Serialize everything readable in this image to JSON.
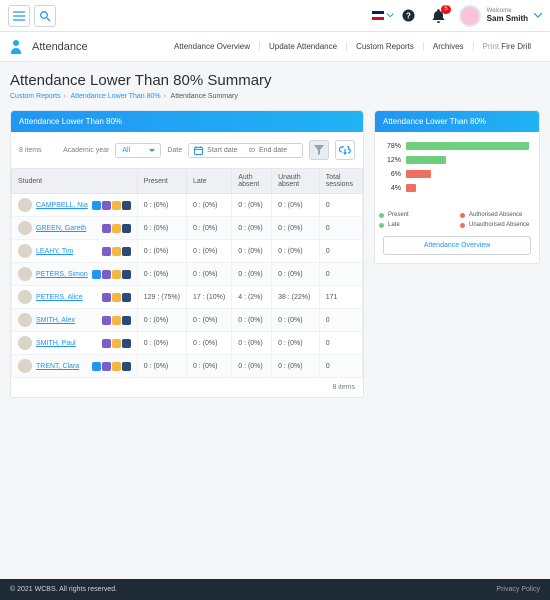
{
  "header": {
    "welcome_label": "Welcome",
    "username": "Sam Smith",
    "notif_count": "5"
  },
  "nav": {
    "section_title": "Attendance",
    "links": [
      {
        "label": "Attendance Overview"
      },
      {
        "label": "Update Attendance"
      },
      {
        "label": "Custom Reports"
      },
      {
        "label": "Archives"
      },
      {
        "label_prefix": "Print ",
        "label": "Fire Drill"
      }
    ]
  },
  "page": {
    "title": "Attendance Lower Than 80% Summary",
    "crumbs": [
      "Custom Reports",
      "Attendance Lower Than 80%",
      "Attendance Summary"
    ]
  },
  "left": {
    "heading": "Attendance Lower Than 80%",
    "item_count_top": "8 items",
    "item_count_bottom": "8 items",
    "academic_year_label": "Academic year",
    "academic_year_value": "All",
    "date_label": "Date",
    "start_placeholder": "Start date",
    "to_label": "to",
    "end_placeholder": "End date",
    "columns": [
      "Student",
      "Present",
      "Late",
      "Auth absent",
      "Unauth absent",
      "Total sessions"
    ],
    "rows": [
      {
        "name": "CAMPBELL, Nia",
        "chips": [
          "c-blue",
          "c-purple",
          "c-yellow",
          "c-navy"
        ],
        "present": "0 : (0%)",
        "late": "0 : (0%)",
        "auth": "0 : (0%)",
        "unauth": "0 : (0%)",
        "total": "0"
      },
      {
        "name": "GREEN, Gareth",
        "chips": [
          "c-purple",
          "c-yellow",
          "c-navy"
        ],
        "present": "0 : (0%)",
        "late": "0 : (0%)",
        "auth": "0 : (0%)",
        "unauth": "0 : (0%)",
        "total": "0"
      },
      {
        "name": "LEAHY, Tim",
        "chips": [
          "c-purple",
          "c-yellow",
          "c-navy"
        ],
        "present": "0 : (0%)",
        "late": "0 : (0%)",
        "auth": "0 : (0%)",
        "unauth": "0 : (0%)",
        "total": "0"
      },
      {
        "name": "PETERS, Simon",
        "chips": [
          "c-blue",
          "c-purple",
          "c-yellow",
          "c-navy"
        ],
        "present": "0 : (0%)",
        "late": "0 : (0%)",
        "auth": "0 : (0%)",
        "unauth": "0 : (0%)",
        "total": "0"
      },
      {
        "name": "PETERS, Alice",
        "chips": [
          "c-purple",
          "c-yellow",
          "c-navy"
        ],
        "present": "129 : (75%)",
        "late": "17 : (10%)",
        "auth": "4 : (2%)",
        "unauth": "38 : (22%)",
        "total": "171"
      },
      {
        "name": "SMITH, Alex",
        "chips": [
          "c-purple",
          "c-yellow",
          "c-navy"
        ],
        "present": "0 : (0%)",
        "late": "0 : (0%)",
        "auth": "0 : (0%)",
        "unauth": "0 : (0%)",
        "total": "0"
      },
      {
        "name": "SMITH, Paul",
        "chips": [
          "c-purple",
          "c-yellow",
          "c-navy"
        ],
        "present": "0 : (0%)",
        "late": "0 : (0%)",
        "auth": "0 : (0%)",
        "unauth": "0 : (0%)",
        "total": "0"
      },
      {
        "name": "TRENT, Clara",
        "chips": [
          "c-blue",
          "c-purple",
          "c-yellow",
          "c-navy"
        ],
        "present": "0 : (0%)",
        "late": "0 : (0%)",
        "auth": "0 : (0%)",
        "unauth": "0 : (0%)",
        "total": "0"
      }
    ]
  },
  "right": {
    "heading": "Attendance Lower Than 80%",
    "chart": {
      "type": "bar",
      "bars": [
        {
          "label": "78%",
          "width_pct": 98,
          "color": "#6fcf7e"
        },
        {
          "label": "12%",
          "width_pct": 32,
          "color": "#6fcf7e"
        },
        {
          "label": "6%",
          "width_pct": 20,
          "color": "#ef6f5e"
        },
        {
          "label": "4%",
          "width_pct": 8,
          "color": "#ef6f5e"
        }
      ],
      "legend": [
        {
          "label": "Present",
          "color": "#6fcf7e"
        },
        {
          "label": "Authorised Absence",
          "color": "#ef6f5e"
        },
        {
          "label": "Late",
          "color": "#6fcf7e"
        },
        {
          "label": "Unauthorised Absence",
          "color": "#ef6f5e"
        }
      ]
    },
    "overview_button": "Attendance Overview"
  },
  "footer": {
    "copyright": "© 2021 WCBS.   All rights reserved.",
    "privacy": "Privacy Policy"
  }
}
